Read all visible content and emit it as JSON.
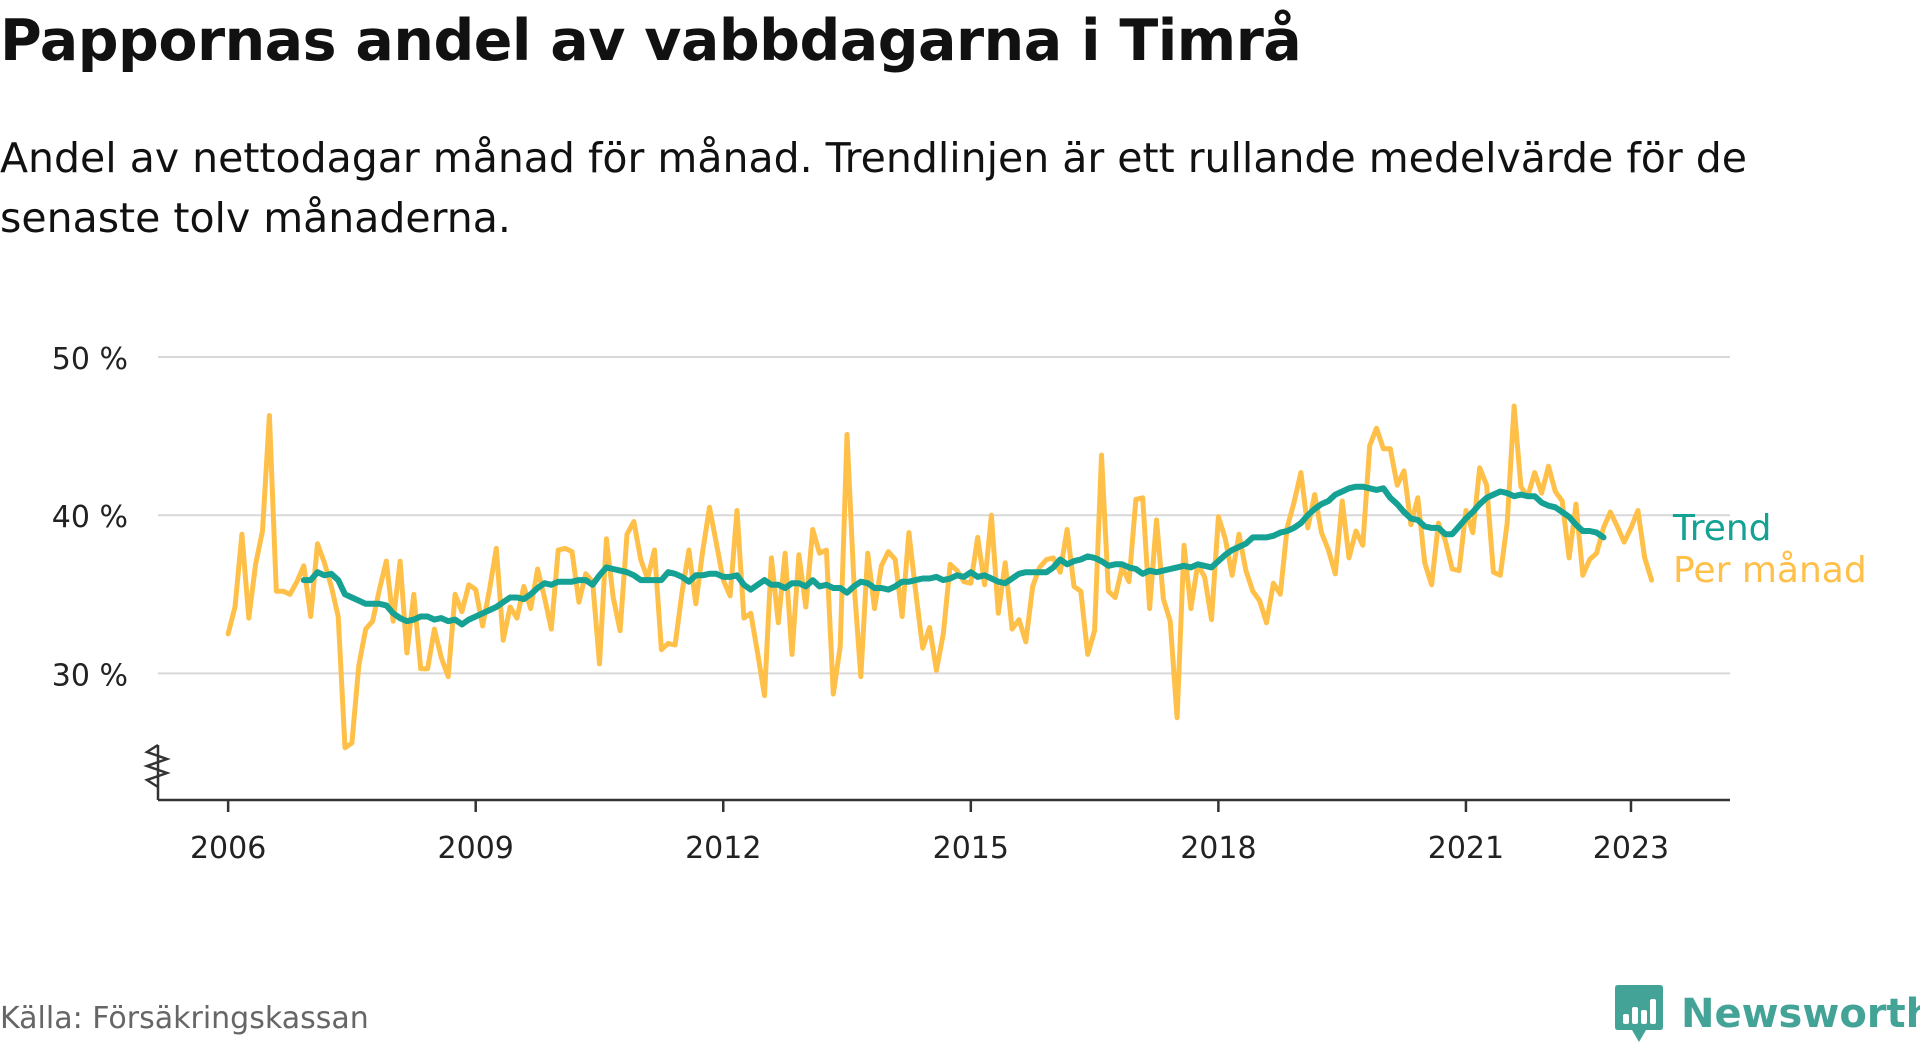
{
  "header": {
    "title": "Pappornas andel av vabbdagarna i Timrå",
    "subtitle": "Andel av nettodagar månad för månad. Trendlinjen är ett rullande medelvärde för de senaste tolv månaderna."
  },
  "footer": {
    "source": "Källa: Försäkringskassan",
    "brand": "Newsworthy"
  },
  "colors": {
    "monthly": "#ffc04a",
    "trend": "#15a193",
    "grid": "#d9d9d9",
    "axis": "#333333",
    "brand": "#43a397"
  },
  "chart_data": {
    "type": "line",
    "ylim": [
      22,
      50
    ],
    "y_ticks": [
      {
        "value": 50,
        "label": "50 %"
      },
      {
        "value": 40,
        "label": "40 %"
      },
      {
        "value": 30,
        "label": "30 %"
      }
    ],
    "x_ticks": [
      {
        "value": 2006.0,
        "label": "2006"
      },
      {
        "value": 2009.0,
        "label": "2009"
      },
      {
        "value": 2012.0,
        "label": "2012"
      },
      {
        "value": 2015.0,
        "label": "2015"
      },
      {
        "value": 2018.0,
        "label": "2018"
      },
      {
        "value": 2021.0,
        "label": "2021"
      },
      {
        "value": 2023.0,
        "label": "2023"
      }
    ],
    "xlim": [
      2005.15,
      2024.2
    ],
    "axis_break": true,
    "grid": true,
    "series": [
      {
        "name": "Per månad",
        "key": "monthly",
        "x_start": 2006.0,
        "x_step": 0.0833333,
        "values": [
          32.5,
          34.2,
          38.8,
          33.5,
          36.9,
          39.0,
          46.3,
          35.2,
          35.2,
          35.0,
          35.8,
          36.8,
          33.6,
          38.2,
          37.0,
          35.5,
          33.6,
          25.3,
          25.6,
          30.5,
          32.8,
          33.3,
          35.3,
          37.1,
          33.3,
          37.1,
          31.3,
          35.0,
          30.3,
          30.3,
          32.8,
          31.0,
          29.8,
          35.0,
          33.9,
          35.6,
          35.3,
          33.0,
          35.3,
          37.9,
          32.1,
          34.2,
          33.5,
          35.5,
          34.1,
          36.6,
          34.8,
          32.8,
          37.8,
          37.9,
          37.7,
          34.5,
          36.3,
          35.8,
          30.6,
          38.5,
          34.8,
          32.7,
          38.8,
          39.6,
          37.2,
          36.0,
          37.8,
          31.5,
          31.9,
          31.8,
          35.1,
          37.8,
          34.4,
          37.7,
          40.5,
          38.2,
          35.9,
          34.9,
          40.3,
          33.5,
          33.8,
          31.3,
          28.6,
          37.3,
          33.2,
          37.6,
          31.2,
          37.5,
          34.2,
          39.1,
          37.6,
          37.8,
          28.7,
          31.7,
          45.1,
          35.8,
          29.8,
          37.6,
          34.1,
          36.8,
          37.7,
          37.2,
          33.6,
          38.9,
          35.1,
          31.6,
          32.9,
          30.2,
          32.5,
          36.9,
          36.5,
          35.8,
          35.7,
          38.6,
          35.6,
          40.0,
          33.8,
          37.0,
          32.8,
          33.4,
          32.0,
          35.5,
          36.7,
          37.2,
          37.3,
          36.4,
          39.1,
          35.5,
          35.2,
          31.2,
          32.7,
          43.8,
          35.2,
          34.8,
          36.7,
          35.8,
          41.0,
          41.1,
          34.1,
          39.7,
          34.7,
          33.3,
          27.2,
          38.1,
          34.1,
          36.9,
          36.1,
          33.4,
          39.9,
          38.5,
          36.2,
          38.8,
          36.5,
          35.2,
          34.6,
          33.2,
          35.7,
          35.0,
          39.2,
          40.8,
          42.7,
          39.2,
          41.3,
          38.9,
          37.8,
          36.3,
          40.9,
          37.3,
          39.0,
          38.1,
          44.4,
          45.5,
          44.2,
          44.2,
          41.9,
          42.8,
          39.4,
          41.1,
          37.0,
          35.6,
          39.5,
          38.4,
          36.6,
          36.5,
          40.3,
          38.9,
          43.0,
          41.9,
          36.4,
          36.2,
          39.5,
          46.9,
          41.8,
          41.2,
          42.7,
          41.4,
          43.1,
          41.5,
          40.9,
          37.3,
          40.7,
          36.2,
          37.2,
          37.6,
          39.2,
          40.2,
          39.3,
          38.3,
          39.2,
          40.3,
          37.3,
          35.9
        ]
      },
      {
        "name": "Trend",
        "key": "trend",
        "x_start": 2006.9167,
        "x_step": 0.0833333,
        "values": [
          35.9,
          35.9,
          36.4,
          36.2,
          36.3,
          35.9,
          35.0,
          34.8,
          34.6,
          34.4,
          34.4,
          34.4,
          34.3,
          33.8,
          33.5,
          33.3,
          33.4,
          33.6,
          33.6,
          33.4,
          33.5,
          33.3,
          33.4,
          33.1,
          33.4,
          33.6,
          33.8,
          34.0,
          34.2,
          34.5,
          34.8,
          34.8,
          34.7,
          35.0,
          35.4,
          35.7,
          35.6,
          35.8,
          35.8,
          35.8,
          35.9,
          35.9,
          35.6,
          36.2,
          36.7,
          36.6,
          36.5,
          36.4,
          36.2,
          35.9,
          35.9,
          35.9,
          35.9,
          36.4,
          36.3,
          36.1,
          35.8,
          36.2,
          36.2,
          36.3,
          36.3,
          36.1,
          36.1,
          36.2,
          35.6,
          35.3,
          35.6,
          35.9,
          35.6,
          35.6,
          35.4,
          35.7,
          35.7,
          35.5,
          35.9,
          35.5,
          35.6,
          35.4,
          35.4,
          35.1,
          35.5,
          35.8,
          35.7,
          35.4,
          35.4,
          35.3,
          35.5,
          35.8,
          35.8,
          35.9,
          36.0,
          36.0,
          36.1,
          35.9,
          36.0,
          36.2,
          36.1,
          36.4,
          36.1,
          36.2,
          36.0,
          35.8,
          35.7,
          36.0,
          36.3,
          36.4,
          36.4,
          36.4,
          36.4,
          36.7,
          37.2,
          36.9,
          37.1,
          37.2,
          37.4,
          37.3,
          37.1,
          36.8,
          36.9,
          36.9,
          36.7,
          36.6,
          36.3,
          36.5,
          36.4,
          36.5,
          36.6,
          36.7,
          36.8,
          36.7,
          36.9,
          36.8,
          36.7,
          37.1,
          37.5,
          37.8,
          38.0,
          38.2,
          38.6,
          38.6,
          38.6,
          38.7,
          38.9,
          39.0,
          39.2,
          39.5,
          40.0,
          40.4,
          40.7,
          40.9,
          41.3,
          41.5,
          41.7,
          41.8,
          41.8,
          41.7,
          41.6,
          41.7,
          41.1,
          40.7,
          40.2,
          39.8,
          39.7,
          39.3,
          39.2,
          39.2,
          38.8,
          38.8,
          39.3,
          39.8,
          40.2,
          40.7,
          41.1,
          41.3,
          41.5,
          41.4,
          41.2,
          41.3,
          41.2,
          41.2,
          40.8,
          40.6,
          40.5,
          40.2,
          39.9,
          39.4,
          39.0,
          39.0,
          38.9,
          38.6
        ]
      }
    ]
  }
}
